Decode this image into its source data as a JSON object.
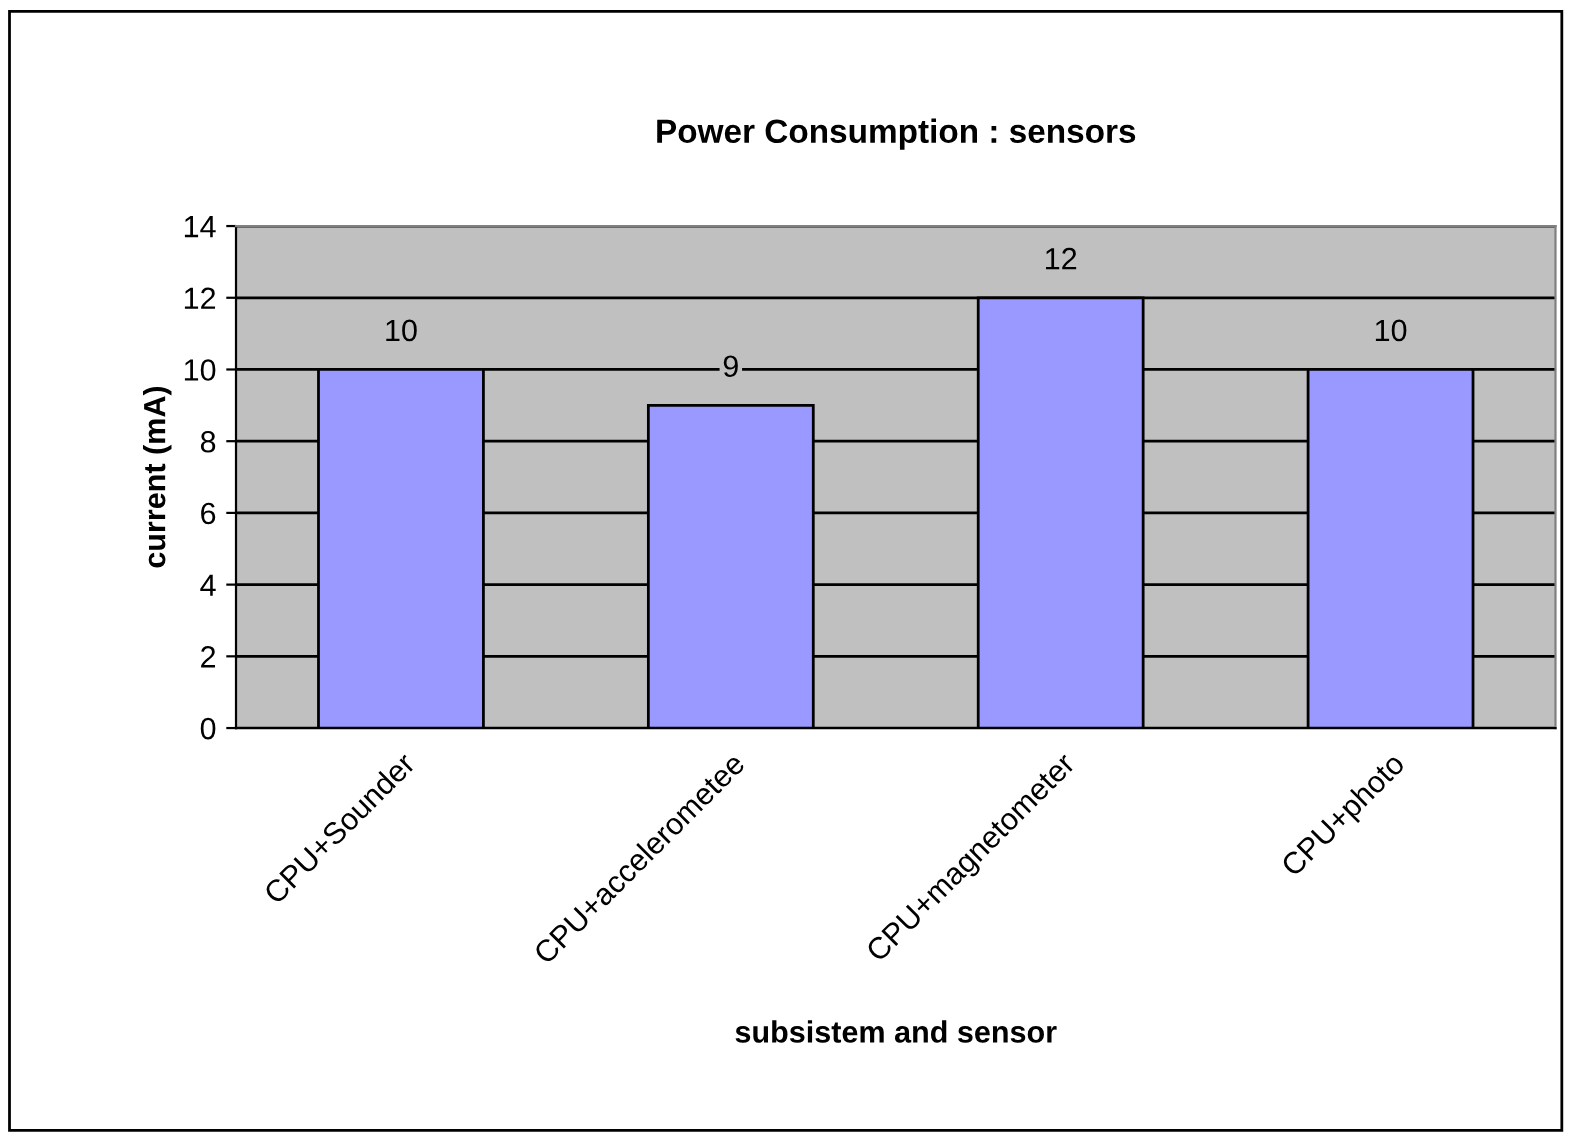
{
  "chart_data": {
    "type": "bar",
    "title": "Power Consumption : sensors",
    "xlabel": "subsistem and sensor",
    "ylabel": "current (mA)",
    "categories": [
      "CPU+Sounder",
      "CPU+accelerometee",
      "CPU+magnetometer",
      "CPU+photo"
    ],
    "values": [
      10,
      9,
      12,
      10
    ],
    "color": "#9999ff",
    "data_labels": true,
    "ylim": [
      0,
      14
    ],
    "yticks": [
      0,
      2,
      4,
      6,
      8,
      10,
      12,
      14
    ],
    "grid": "y",
    "legend": false
  }
}
